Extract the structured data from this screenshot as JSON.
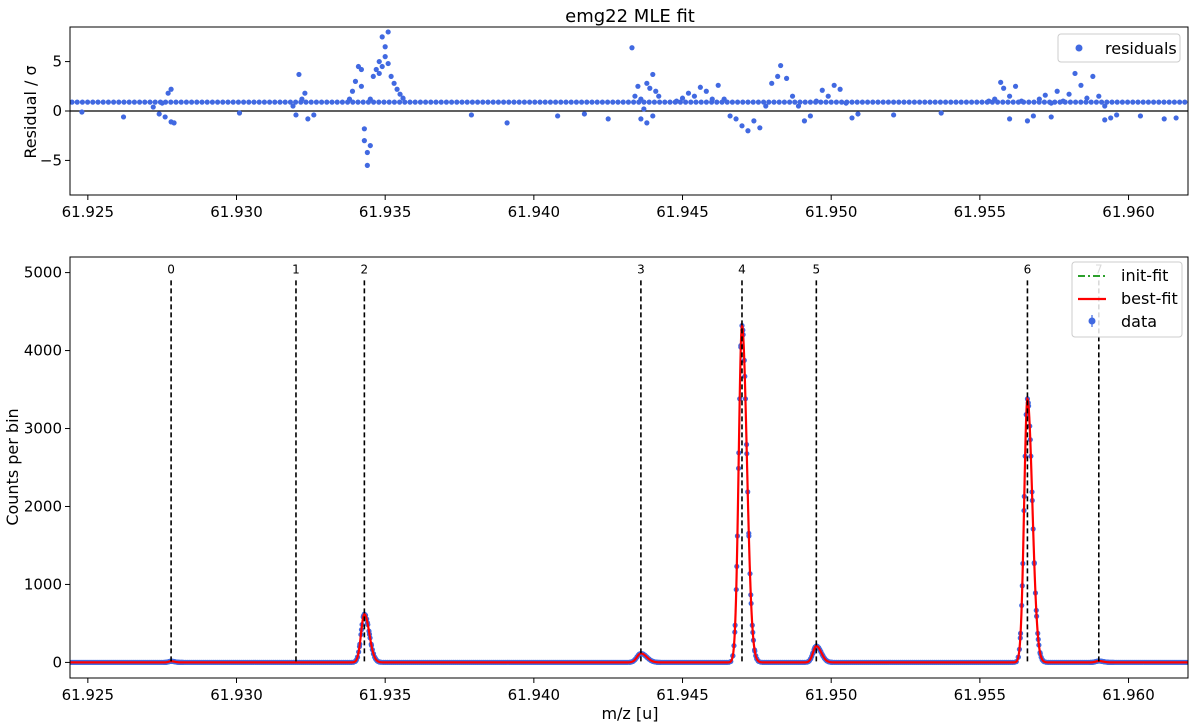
{
  "chart_data": [
    {
      "type": "scatter",
      "title": "emg22 MLE fit",
      "xlabel": "",
      "ylabel": "Residual / σ",
      "xlim": [
        61.9244,
        61.962
      ],
      "ylim": [
        -8.5,
        8.5
      ],
      "xticks": [
        "61.925",
        "61.930",
        "61.935",
        "61.940",
        "61.945",
        "61.950",
        "61.955",
        "61.960"
      ],
      "yticks": [
        "5",
        "0",
        "−5"
      ],
      "zero_line": 0,
      "legend": {
        "position": "top-right",
        "entries": [
          "residuals"
        ]
      },
      "series": [
        {
          "name": "residuals",
          "color": "#4169e1",
          "baseline_upper": 0.9,
          "baseline_lower": 0.0,
          "points": [
            [
              61.9272,
              0.4
            ],
            [
              61.9275,
              0.8
            ],
            [
              61.9277,
              1.8
            ],
            [
              61.9278,
              2.2
            ],
            [
              61.9276,
              -0.6
            ],
            [
              61.9278,
              -1.1
            ],
            [
              61.9279,
              -1.2
            ],
            [
              61.9274,
              -0.3
            ],
            [
              61.9321,
              3.7
            ],
            [
              61.9322,
              1.2
            ],
            [
              61.9323,
              1.8
            ],
            [
              61.9319,
              0.5
            ],
            [
              61.932,
              -0.4
            ],
            [
              61.9324,
              -0.8
            ],
            [
              61.9326,
              -0.4
            ],
            [
              61.9338,
              1.2
            ],
            [
              61.9339,
              2.0
            ],
            [
              61.934,
              3.0
            ],
            [
              61.9341,
              4.5
            ],
            [
              61.9342,
              4.2
            ],
            [
              61.9342,
              2.5
            ],
            [
              61.9343,
              -1.8
            ],
            [
              61.9343,
              -3.0
            ],
            [
              61.9344,
              -4.2
            ],
            [
              61.9344,
              -5.5
            ],
            [
              61.9345,
              -3.5
            ],
            [
              61.9345,
              1.2
            ],
            [
              61.9346,
              3.5
            ],
            [
              61.9347,
              4.2
            ],
            [
              61.9348,
              3.8
            ],
            [
              61.9348,
              5.0
            ],
            [
              61.9349,
              4.5
            ],
            [
              61.9349,
              7.5
            ],
            [
              61.935,
              5.5
            ],
            [
              61.935,
              6.5
            ],
            [
              61.9351,
              4.8
            ],
            [
              61.9351,
              8.0
            ],
            [
              61.9352,
              3.5
            ],
            [
              61.9353,
              2.8
            ],
            [
              61.9354,
              2.2
            ],
            [
              61.9355,
              1.7
            ],
            [
              61.9356,
              1.3
            ],
            [
              61.9433,
              6.4
            ],
            [
              61.9434,
              1.5
            ],
            [
              61.9435,
              2.5
            ],
            [
              61.9436,
              1.2
            ],
            [
              61.9437,
              0.2
            ],
            [
              61.9438,
              2.8
            ],
            [
              61.9439,
              2.3
            ],
            [
              61.944,
              3.7
            ],
            [
              61.9441,
              2.0
            ],
            [
              61.9442,
              1.5
            ],
            [
              61.9436,
              -0.8
            ],
            [
              61.9438,
              -1.2
            ],
            [
              61.944,
              -0.5
            ],
            [
              61.9448,
              1.0
            ],
            [
              61.945,
              1.3
            ],
            [
              61.9452,
              1.8
            ],
            [
              61.9454,
              1.5
            ],
            [
              61.9456,
              2.4
            ],
            [
              61.9458,
              2.0
            ],
            [
              61.946,
              1.2
            ],
            [
              61.9462,
              2.6
            ],
            [
              61.9464,
              1.2
            ],
            [
              61.9466,
              -0.5
            ],
            [
              61.9468,
              -0.8
            ],
            [
              61.947,
              -1.5
            ],
            [
              61.9472,
              -2.0
            ],
            [
              61.9474,
              -1.0
            ],
            [
              61.9476,
              -1.7
            ],
            [
              61.9478,
              0.5
            ],
            [
              61.948,
              2.8
            ],
            [
              61.9482,
              3.5
            ],
            [
              61.9483,
              4.6
            ],
            [
              61.9485,
              3.3
            ],
            [
              61.9487,
              1.5
            ],
            [
              61.9489,
              0.5
            ],
            [
              61.9491,
              -1.0
            ],
            [
              61.9493,
              -0.5
            ],
            [
              61.9495,
              1.0
            ],
            [
              61.9497,
              2.1
            ],
            [
              61.9499,
              1.5
            ],
            [
              61.9501,
              2.6
            ],
            [
              61.9503,
              2.2
            ],
            [
              61.9505,
              0.8
            ],
            [
              61.9507,
              -0.7
            ],
            [
              61.9509,
              -0.3
            ],
            [
              61.9553,
              1.0
            ],
            [
              61.9555,
              1.2
            ],
            [
              61.9557,
              2.9
            ],
            [
              61.9558,
              2.3
            ],
            [
              61.956,
              1.5
            ],
            [
              61.9562,
              2.5
            ],
            [
              61.9564,
              1.0
            ],
            [
              61.9566,
              -1.0
            ],
            [
              61.9568,
              -0.5
            ],
            [
              61.957,
              1.2
            ],
            [
              61.9572,
              1.6
            ],
            [
              61.9574,
              0.8
            ],
            [
              61.9576,
              2.0
            ],
            [
              61.9578,
              1.0
            ],
            [
              61.958,
              1.7
            ],
            [
              61.9582,
              3.8
            ],
            [
              61.9584,
              2.6
            ],
            [
              61.9586,
              1.3
            ],
            [
              61.9588,
              3.5
            ],
            [
              61.959,
              1.5
            ],
            [
              61.9592,
              0.5
            ],
            [
              61.9594,
              -0.7
            ],
            [
              61.9596,
              -0.4
            ],
            [
              61.956,
              -0.8
            ],
            [
              61.9574,
              -0.6
            ],
            [
              61.9592,
              -0.9
            ],
            [
              61.9248,
              -0.1
            ],
            [
              61.9262,
              -0.6
            ],
            [
              61.9301,
              -0.2
            ],
            [
              61.9379,
              -0.4
            ],
            [
              61.9391,
              -1.2
            ],
            [
              61.9408,
              -0.5
            ],
            [
              61.9417,
              -0.3
            ],
            [
              61.9425,
              -0.8
            ],
            [
              61.9521,
              -0.4
            ],
            [
              61.9537,
              -0.2
            ],
            [
              61.9604,
              -0.5
            ],
            [
              61.9612,
              -0.8
            ],
            [
              61.9616,
              -0.7
            ]
          ]
        }
      ]
    },
    {
      "type": "line",
      "title": "",
      "xlabel": "m/z [u]",
      "ylabel": "Counts per bin",
      "xlim": [
        61.9244,
        61.962
      ],
      "ylim": [
        -200,
        5200
      ],
      "xticks": [
        "61.925",
        "61.930",
        "61.935",
        "61.940",
        "61.945",
        "61.950",
        "61.955",
        "61.960"
      ],
      "yticks": [
        "0",
        "1000",
        "2000",
        "3000",
        "4000",
        "5000"
      ],
      "legend": {
        "position": "top-right",
        "entries": [
          "init-fit",
          "best-fit",
          "data"
        ]
      },
      "peak_markers": [
        {
          "label": "0",
          "x": 61.9278
        },
        {
          "label": "1",
          "x": 61.932
        },
        {
          "label": "2",
          "x": 61.9343
        },
        {
          "label": "3",
          "x": 61.9436
        },
        {
          "label": "4",
          "x": 61.947
        },
        {
          "label": "5",
          "x": 61.9495
        },
        {
          "label": "6",
          "x": 61.9566
        },
        {
          "label": "7",
          "x": 61.959
        }
      ],
      "peak_marker_top": 4900,
      "peaks": [
        {
          "center": 61.9278,
          "height": 15,
          "sigma": 8e-05
        },
        {
          "center": 61.9343,
          "height": 620,
          "sigma": 0.00011
        },
        {
          "center": 61.9436,
          "height": 115,
          "sigma": 0.00013
        },
        {
          "center": 61.947,
          "height": 4320,
          "sigma": 0.00011
        },
        {
          "center": 61.9495,
          "height": 210,
          "sigma": 0.00011
        },
        {
          "center": 61.9566,
          "height": 3380,
          "sigma": 0.00011
        },
        {
          "center": 61.959,
          "height": 18,
          "sigma": 0.0001
        }
      ],
      "series": [
        {
          "name": "init-fit",
          "color": "#2ca02c",
          "style": "dash-dot"
        },
        {
          "name": "best-fit",
          "color": "#ff0000",
          "style": "solid"
        },
        {
          "name": "data",
          "color": "#4169e1",
          "style": "markers"
        }
      ]
    }
  ]
}
